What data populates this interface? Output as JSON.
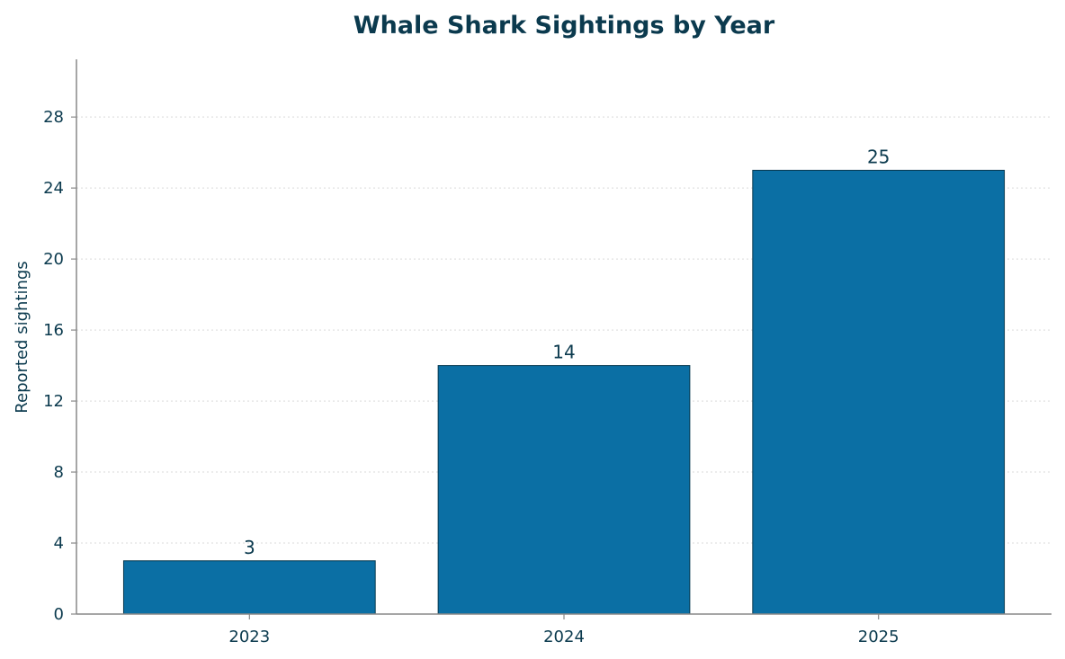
{
  "chart_data": {
    "type": "bar",
    "title": "Whale Shark Sightings by Year",
    "xlabel": "",
    "ylabel": "Reported sightings",
    "categories": [
      "2023",
      "2024",
      "2025"
    ],
    "values": [
      3,
      14,
      25
    ],
    "data_labels": [
      "3",
      "14",
      "25"
    ],
    "ylim": [
      0,
      31.25
    ],
    "yticks": [
      0,
      4,
      8,
      12,
      16,
      20,
      24,
      28
    ],
    "ytick_labels": [
      "0",
      "4",
      "8",
      "12",
      "16",
      "20",
      "24",
      "28"
    ],
    "grid": "y-dotted",
    "legend": "none"
  },
  "colors": {
    "bar_fill": "#0b6fa4",
    "bar_edge": "#07394f",
    "text": "#0b3a4e",
    "axis": "#888888",
    "grid": "#d9d9d9"
  }
}
